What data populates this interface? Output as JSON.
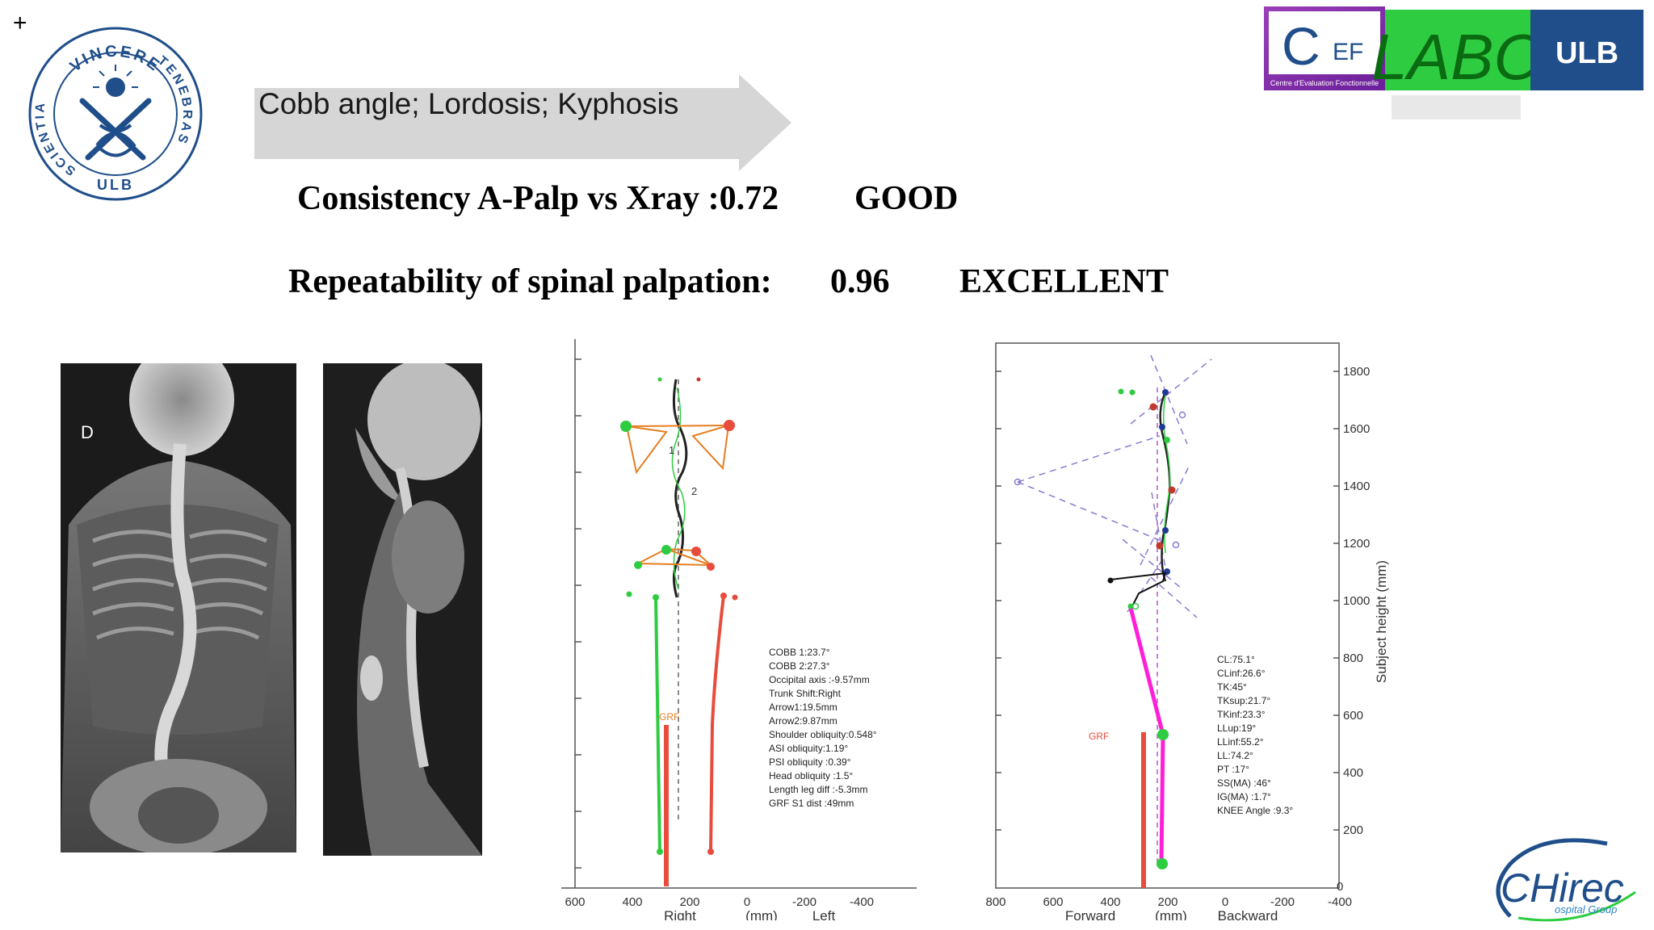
{
  "slide": {
    "corner_mark": "+",
    "arrow_label": "Cobb angle; Lordosis; Kyphosis",
    "consistency": {
      "label": "Consistency A-Palp vs Xray :0.72",
      "rating": "GOOD"
    },
    "repeatability": {
      "label": "Repeatability of spinal palpation:",
      "value": "0.96",
      "rating": "EXCELLENT"
    }
  },
  "logos": {
    "ulb_seal": {
      "top": "VINCERE",
      "right": "TENEBRAS",
      "left": "SCIENTIA",
      "bottom": "ULB"
    },
    "cef": {
      "big": "C",
      "small": "EF",
      "caption": "Centre d'Evaluation Fonctionnelle"
    },
    "labo": "LABO",
    "ulb": "ULB",
    "chirec": {
      "name": "CHirec",
      "sub": "ospital Group"
    }
  },
  "xray": {
    "front_marker": "D"
  },
  "frontal_plot": {
    "x_ticks": [
      "600",
      "400",
      "200",
      "0",
      "-200",
      "-400"
    ],
    "x_labels": {
      "left": "Right",
      "center": "(mm)",
      "right": "Left"
    },
    "grf_label": "GRF",
    "curve_labels": [
      "1",
      "2"
    ],
    "annotations": [
      "COBB 1:23.7°",
      "COBB 2:27.3°",
      "Occipital axis :-9.57mm",
      "Trunk Shift:Right",
      "Arrow1:19.5mm",
      "Arrow2:9.87mm",
      "Shoulder obliquity:0.548°",
      "ASI obliquity:1.19°",
      "PSI obliquity :0.39°",
      "Head obliquity  :1.5°",
      "Length leg diff :-5.3mm",
      "GRF S1 dist :49mm"
    ]
  },
  "sagittal_plot": {
    "x_ticks": [
      "800",
      "600",
      "400",
      "200",
      "0",
      "-200",
      "-400"
    ],
    "x_labels": {
      "left": "Forward",
      "center": "(mm)",
      "right": "Backward"
    },
    "y_ticks": [
      "1800",
      "1600",
      "1400",
      "1200",
      "1000",
      "800",
      "600",
      "400",
      "200",
      "0"
    ],
    "y_label": "Subject height (mm)",
    "grf_label": "GRF",
    "annotations": [
      "CL:75.1°",
      "CLinf:26.6°",
      "TK:45°",
      "TKsup:21.7°",
      "TKinf:23.3°",
      "LLup:19°",
      "LLinf:55.2°",
      "LL:74.2°",
      "PT :17°",
      "SS(MA) :46°",
      "IG(MA) :1.7°",
      "KNEE Angle :9.3°"
    ]
  }
}
